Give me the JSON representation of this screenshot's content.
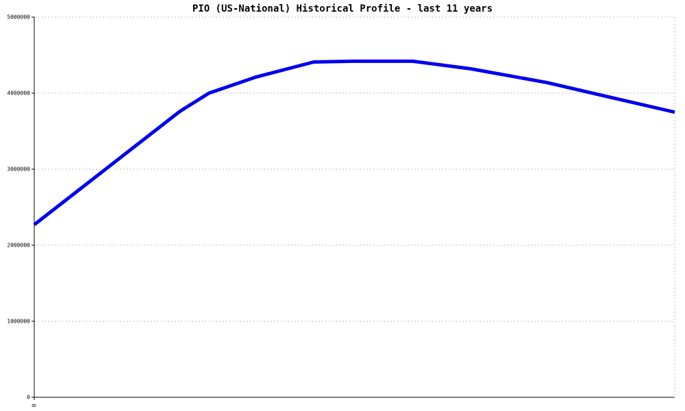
{
  "chart_data": {
    "type": "line",
    "title": "PIO (US-National) Historical Profile - last 11 years",
    "x": [
      0,
      2.5,
      3.0,
      3.8,
      4.8,
      5.5,
      6.5,
      7.5,
      8.8,
      11
    ],
    "values": [
      2270000,
      3760000,
      4000000,
      4210000,
      4410000,
      4420000,
      4420000,
      4320000,
      4140000,
      3750000
    ],
    "color": "#0000ee",
    "xlim": [
      0,
      11
    ],
    "xticks": [
      0
    ],
    "ylim": [
      0,
      5000000
    ],
    "yticks": [
      0,
      1000000,
      2000000,
      3000000,
      4000000,
      5000000
    ],
    "grid": true
  }
}
